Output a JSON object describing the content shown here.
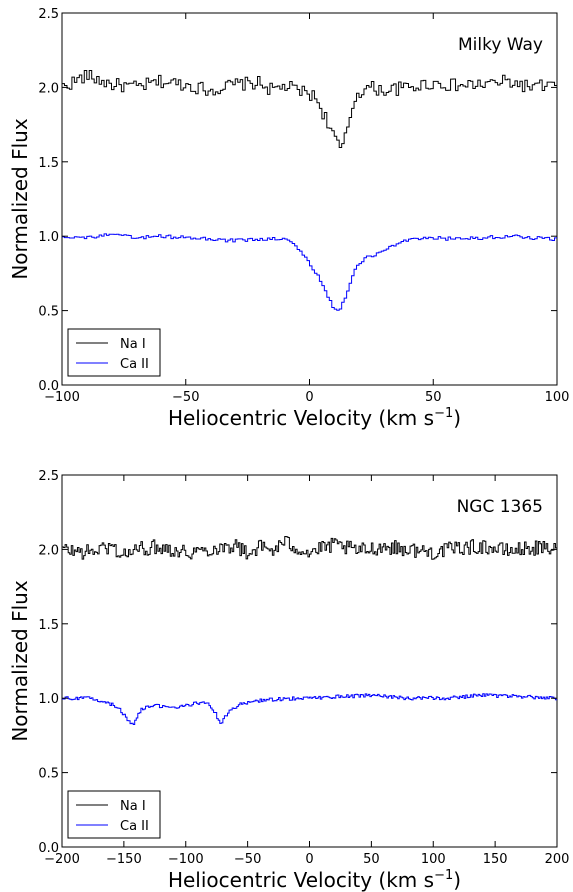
{
  "chart_data": [
    {
      "type": "line",
      "title": "Milky Way",
      "xlabel": "Heliocentric Velocity (km s",
      "xlabel_sup": "−1",
      "xlabel_close": ")",
      "ylabel": "Normalized Flux",
      "xlim": [
        -100,
        100
      ],
      "ylim": [
        0.0,
        2.5
      ],
      "xticks": [
        -100,
        -50,
        0,
        50,
        100
      ],
      "xtick_labels": [
        "−100",
        "−50",
        "0",
        "50",
        "100"
      ],
      "yticks": [
        0.0,
        0.5,
        1.0,
        1.5,
        2.0,
        2.5
      ],
      "ytick_labels": [
        "0.0",
        "0.5",
        "1.0",
        "1.5",
        "2.0",
        "2.5"
      ],
      "legend_position": "lower-left",
      "series": [
        {
          "name": "Na I",
          "color": "#000000",
          "x": [
            -100,
            -90,
            -80,
            -70,
            -60,
            -50,
            -40,
            -30,
            -20,
            -15,
            -10,
            -5,
            0,
            3,
            5,
            7,
            9,
            11,
            13,
            15,
            17,
            19,
            21,
            25,
            30,
            40,
            50,
            60,
            70,
            80,
            90,
            100
          ],
          "values": [
            2.0,
            2.08,
            2.02,
            2.0,
            2.04,
            2.02,
            1.98,
            2.02,
            2.03,
            1.98,
            2.01,
            1.98,
            1.96,
            1.92,
            1.85,
            1.78,
            1.72,
            1.62,
            1.58,
            1.68,
            1.85,
            1.95,
            1.98,
            2.0,
            1.98,
            2.0,
            2.03,
            2.01,
            2.02,
            2.04,
            2.0,
            2.02
          ]
        },
        {
          "name": "Ca II",
          "color": "#0000ff",
          "x": [
            -100,
            -90,
            -80,
            -70,
            -60,
            -50,
            -40,
            -30,
            -20,
            -15,
            -10,
            -6,
            -3,
            0,
            3,
            6,
            8,
            10,
            12,
            14,
            16,
            18,
            20,
            23,
            26,
            30,
            35,
            40,
            45,
            50,
            60,
            70,
            80,
            90,
            100
          ],
          "values": [
            1.0,
            0.99,
            1.01,
            0.99,
            1.0,
            0.99,
            0.98,
            0.97,
            0.98,
            0.98,
            0.98,
            0.95,
            0.88,
            0.82,
            0.75,
            0.65,
            0.58,
            0.51,
            0.5,
            0.56,
            0.66,
            0.76,
            0.82,
            0.86,
            0.87,
            0.9,
            0.95,
            0.97,
            0.98,
            0.99,
            0.98,
            0.99,
            1.0,
            0.99,
            0.98
          ]
        }
      ]
    },
    {
      "type": "line",
      "title": "NGC 1365",
      "xlabel": "Heliocentric Velocity (km s",
      "xlabel_sup": "−1",
      "xlabel_close": ")",
      "ylabel": "Normalized Flux",
      "xlim": [
        -200,
        200
      ],
      "ylim": [
        0.0,
        2.5
      ],
      "xticks": [
        -200,
        -150,
        -100,
        -50,
        0,
        50,
        100,
        150,
        200
      ],
      "xtick_labels": [
        "−200",
        "−150",
        "−100",
        "−50",
        "0",
        "50",
        "100",
        "150",
        "200"
      ],
      "yticks": [
        0.0,
        0.5,
        1.0,
        1.5,
        2.0,
        2.5
      ],
      "ytick_labels": [
        "0.0",
        "0.5",
        "1.0",
        "1.5",
        "2.0",
        "2.5"
      ],
      "legend_position": "lower-left",
      "series": [
        {
          "name": "Na I",
          "color": "#000000",
          "x": [
            -200,
            -180,
            -160,
            -150,
            -140,
            -120,
            -100,
            -80,
            -60,
            -50,
            -40,
            -30,
            -20,
            -10,
            0,
            20,
            40,
            60,
            80,
            100,
            120,
            140,
            160,
            180,
            200
          ],
          "values": [
            2.0,
            1.98,
            2.02,
            1.96,
            2.0,
            2.02,
            1.98,
            2.0,
            2.03,
            1.97,
            2.02,
            1.99,
            2.05,
            2.01,
            1.98,
            2.03,
            1.99,
            2.02,
            2.0,
            1.98,
            2.01,
            2.02,
            1.99,
            2.01,
            2.0
          ]
        },
        {
          "name": "Ca II",
          "color": "#0000ff",
          "x": [
            -200,
            -180,
            -165,
            -155,
            -150,
            -146,
            -143,
            -140,
            -135,
            -125,
            -115,
            -105,
            -95,
            -85,
            -80,
            -76,
            -73,
            -71,
            -68,
            -62,
            -55,
            -45,
            -30,
            -10,
            0,
            20,
            50,
            80,
            110,
            140,
            170,
            200
          ],
          "values": [
            1.0,
            1.0,
            0.98,
            0.94,
            0.89,
            0.84,
            0.82,
            0.86,
            0.93,
            0.95,
            0.94,
            0.94,
            0.96,
            0.97,
            0.95,
            0.9,
            0.85,
            0.83,
            0.88,
            0.93,
            0.96,
            0.98,
            0.99,
            1.0,
            1.0,
            1.01,
            1.02,
            1.0,
            1.0,
            1.02,
            1.01,
            1.0
          ]
        }
      ]
    }
  ]
}
